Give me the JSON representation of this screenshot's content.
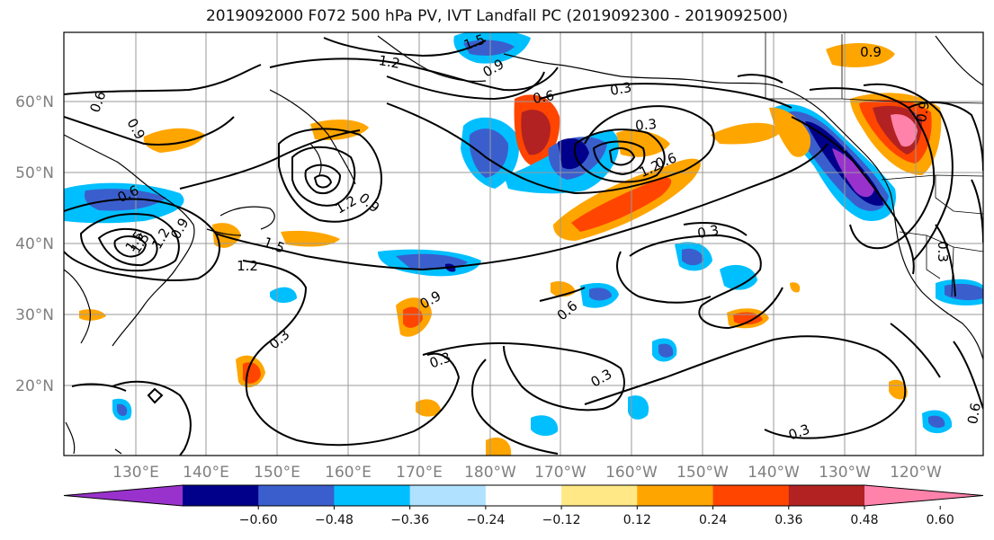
{
  "title": "2019092000 F072 500 hPa PV, IVT Landfall PC (2019092300 - 2019092500)",
  "map": {
    "lat_labels": [
      "60°N",
      "50°N",
      "40°N",
      "30°N",
      "20°N"
    ],
    "lon_labels": [
      "130°E",
      "140°E",
      "150°E",
      "160°E",
      "170°E",
      "180°W",
      "170°W",
      "160°W",
      "150°W",
      "140°W",
      "130°W",
      "120°W"
    ],
    "contour_labels": [
      "1.5",
      "1.2",
      "0.9",
      "0.6",
      "0.9",
      "0.6",
      "1.5",
      "1.2",
      "0.9",
      "0.6",
      "0.9",
      "1.2",
      "1.5",
      "1.2",
      "0.9",
      "0.6",
      "0.3",
      "0.3",
      "0.3",
      "0.3",
      "0.3",
      "0.3",
      "0.6",
      "0.3",
      "0.3",
      "0.9",
      "0.9",
      "0.6",
      "1.2",
      "1.5"
    ]
  },
  "colorbar": {
    "colors": [
      "#9932CC",
      "#00008B",
      "#3A5FCD",
      "#00BFFF",
      "#B0E2FF",
      "#FFFFFF",
      "#FFE885",
      "#FFA500",
      "#FF4500",
      "#B22222",
      "#FF82AB"
    ],
    "tick_labels": [
      "−0.60",
      "−0.48",
      "−0.36",
      "−0.24",
      "−0.12",
      "0.12",
      "0.24",
      "0.36",
      "0.48",
      "0.60"
    ]
  }
}
